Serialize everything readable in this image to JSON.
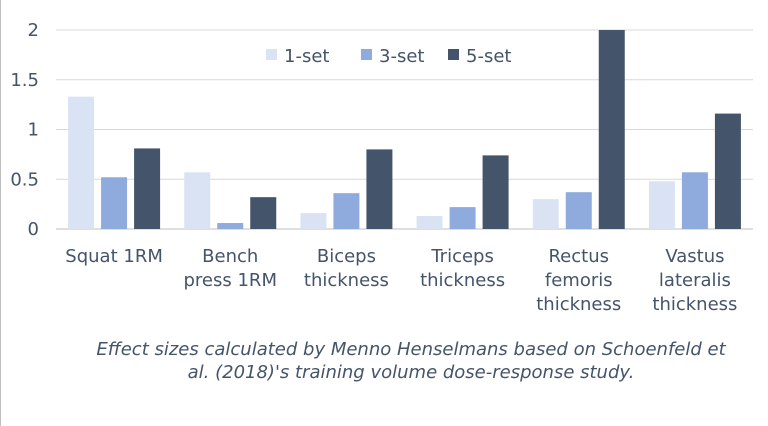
{
  "chart_data": {
    "type": "bar",
    "categories": [
      [
        "Squat 1RM"
      ],
      [
        "Bench",
        "press 1RM"
      ],
      [
        "Biceps",
        "thickness"
      ],
      [
        "Triceps",
        "thickness"
      ],
      [
        "Rectus",
        "femoris",
        "thickness"
      ],
      [
        "Vastus",
        "lateralis",
        "thickness"
      ]
    ],
    "series": [
      {
        "name": "1-set",
        "color": "#dae3f3",
        "values": [
          1.33,
          0.57,
          0.16,
          0.13,
          0.3,
          0.48
        ]
      },
      {
        "name": "3-set",
        "color": "#8faadc",
        "values": [
          0.52,
          0.06,
          0.36,
          0.22,
          0.37,
          0.57
        ]
      },
      {
        "name": "5-set",
        "color": "#44546a",
        "values": [
          0.81,
          0.32,
          0.8,
          0.74,
          2.0,
          1.16
        ]
      }
    ],
    "yticks": [
      "0",
      "0.5",
      "1",
      "1.5",
      "2"
    ],
    "ylim": [
      0,
      2
    ],
    "grid": true,
    "legend": "top-center"
  },
  "caption": "Effect sizes calculated by Menno Henselmans based on Schoenfeld et al. (2018)'s training volume dose-response study."
}
